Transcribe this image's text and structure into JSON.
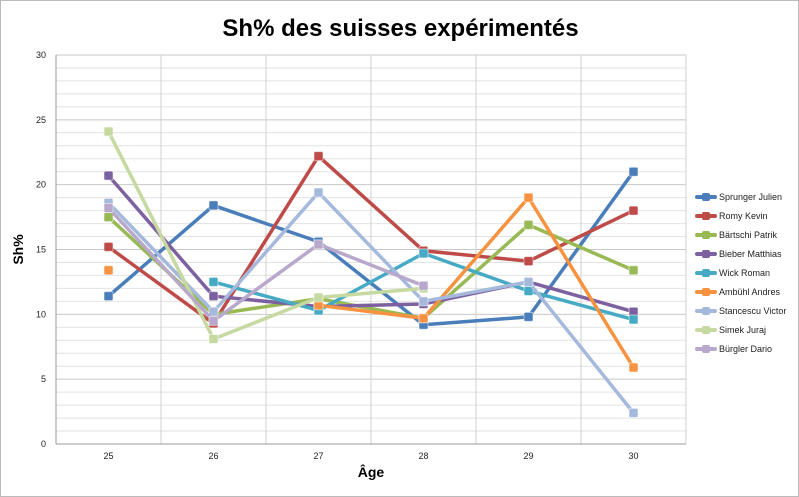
{
  "chart_data": {
    "type": "line",
    "title": "Sh% des suisses expérimentés",
    "xlabel": "Âge",
    "ylabel": "Sh%",
    "categories": [
      "25",
      "26",
      "27",
      "28",
      "29",
      "30"
    ],
    "ylim": [
      0,
      30
    ],
    "yticks": [
      "0",
      "5",
      "10",
      "15",
      "20",
      "25",
      "30"
    ],
    "grid": true,
    "legend": "right",
    "series": [
      {
        "name": "Sprunger Julien",
        "color": "#4a7ebb",
        "values": [
          11.4,
          18.4,
          15.6,
          9.2,
          9.8,
          21.0
        ]
      },
      {
        "name": "Romy Kevin",
        "color": "#be4b48",
        "values": [
          15.2,
          9.3,
          22.2,
          14.9,
          14.1,
          18.0
        ]
      },
      {
        "name": "Bärtschi Patrik",
        "color": "#98b954",
        "values": [
          17.5,
          10.0,
          11.2,
          9.7,
          16.9,
          13.4
        ]
      },
      {
        "name": "Bieber Matthias",
        "color": "#7d60a0",
        "values": [
          20.7,
          11.4,
          10.6,
          10.8,
          12.5,
          10.2
        ]
      },
      {
        "name": "Wick Roman",
        "color": "#46aac5",
        "values": [
          null,
          12.5,
          10.3,
          14.7,
          11.8,
          9.6
        ]
      },
      {
        "name": "Ambühl Andres",
        "color": "#f69240",
        "values": [
          13.4,
          null,
          10.7,
          9.7,
          19.0,
          5.9
        ]
      },
      {
        "name": "Stancescu Victor",
        "color": "#a5b9dc",
        "values": [
          18.6,
          10.2,
          19.4,
          11.0,
          12.5,
          2.4
        ]
      },
      {
        "name": "Simek Juraj",
        "color": "#c5d9a0",
        "values": [
          24.1,
          8.1,
          11.3,
          12.0,
          null,
          null
        ]
      },
      {
        "name": "Bürgler Dario",
        "color": "#b7a8cc",
        "values": [
          18.2,
          9.5,
          15.4,
          12.2,
          null,
          null
        ]
      }
    ]
  }
}
